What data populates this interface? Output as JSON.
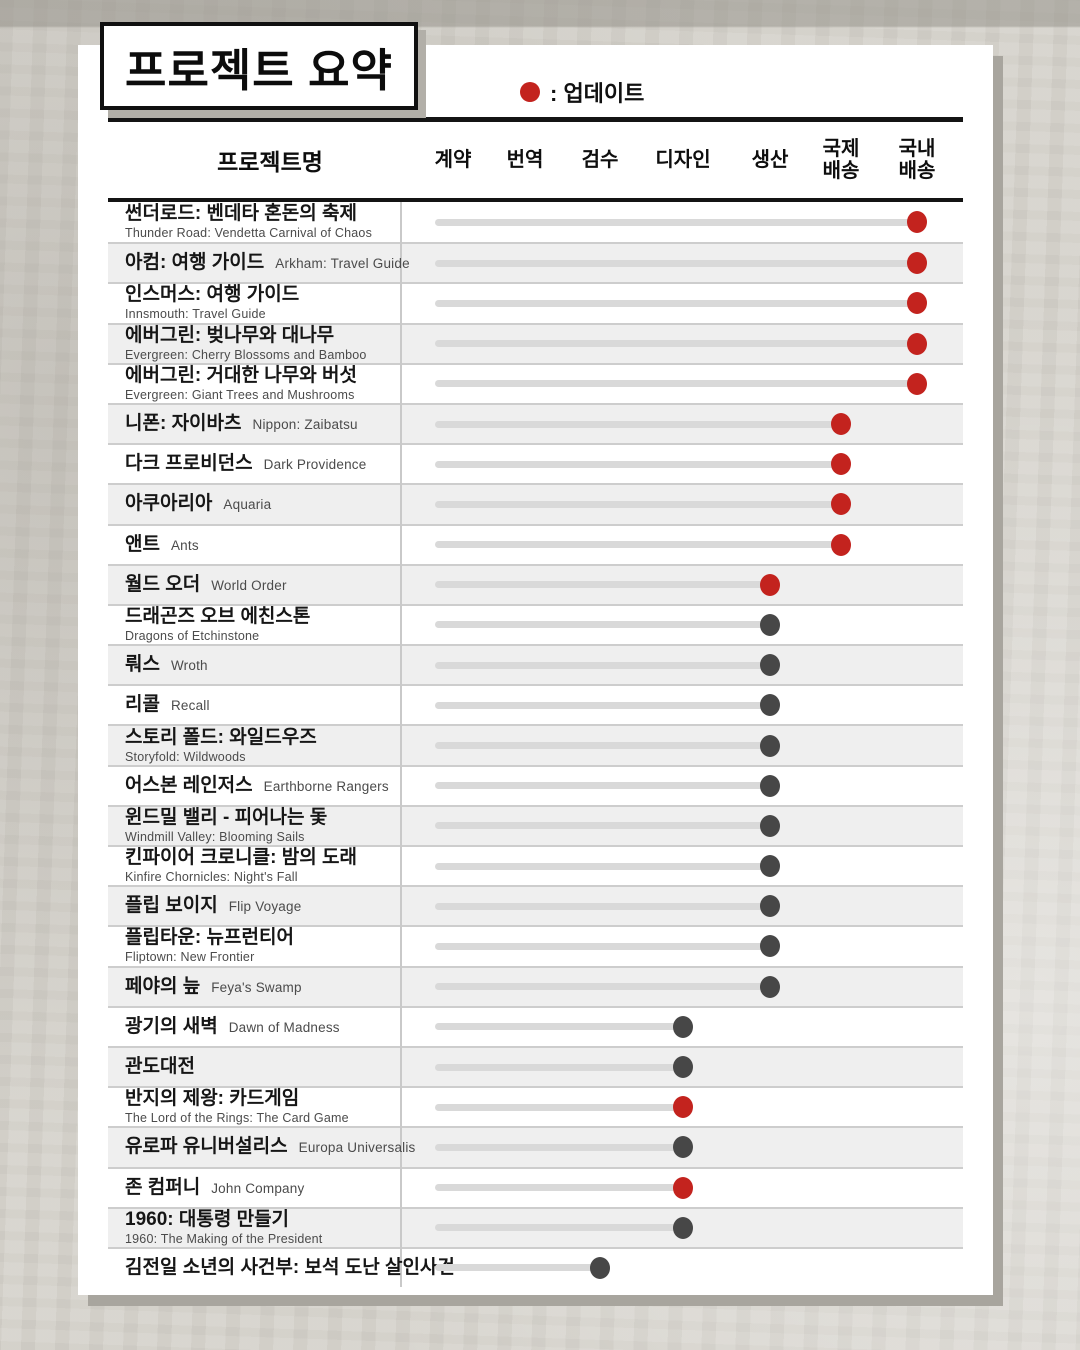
{
  "title": "프로젝트 요약",
  "legend": {
    "marker": "red-dot-icon",
    "label": ": 업데이트"
  },
  "colors": {
    "update_red": "#c3231e",
    "dot_gray": "#474747",
    "track_gray": "#d9d9d9",
    "row_alt_bg": "#efefef",
    "rule_black": "#141414"
  },
  "chart_data": {
    "type": "table",
    "title": "프로젝트 요약",
    "legend_label": ": 업데이트",
    "name_header": "프로젝트명",
    "columns": [
      "계약",
      "번역",
      "검수",
      "디자인",
      "생산",
      "국제 배송",
      "국내 배송"
    ],
    "rows": [
      {
        "name_kr": "썬더로드: 벤데타 혼돈의 축제",
        "name_en": "Thunder Road: Vendetta Carnival of Chaos",
        "layout": "stack",
        "stage_index": 7,
        "stage": "국내배송",
        "updated": true
      },
      {
        "name_kr": "아컴: 여행 가이드",
        "name_en": "Arkham: Travel Guide",
        "layout": "inline",
        "stage_index": 7,
        "stage": "국내배송",
        "updated": true
      },
      {
        "name_kr": "인스머스: 여행 가이드",
        "name_en": "Innsmouth: Travel Guide",
        "layout": "stack",
        "stage_index": 7,
        "stage": "국내배송",
        "updated": true
      },
      {
        "name_kr": "에버그린: 벚나무와 대나무",
        "name_en": "Evergreen: Cherry Blossoms and Bamboo",
        "layout": "stack",
        "stage_index": 7,
        "stage": "국내배송",
        "updated": true
      },
      {
        "name_kr": "에버그린: 거대한 나무와 버섯",
        "name_en": "Evergreen: Giant Trees and Mushrooms",
        "layout": "stack",
        "stage_index": 7,
        "stage": "국내배송",
        "updated": true
      },
      {
        "name_kr": "니폰: 자이바츠",
        "name_en": "Nippon: Zaibatsu",
        "layout": "inline",
        "stage_index": 6,
        "stage": "국제배송",
        "updated": true
      },
      {
        "name_kr": "다크 프로비던스",
        "name_en": "Dark Providence",
        "layout": "inline",
        "stage_index": 6,
        "stage": "국제배송",
        "updated": true
      },
      {
        "name_kr": "아쿠아리아",
        "name_en": "Aquaria",
        "layout": "inline",
        "stage_index": 6,
        "stage": "국제배송",
        "updated": true
      },
      {
        "name_kr": "앤트",
        "name_en": "Ants",
        "layout": "inline",
        "stage_index": 6,
        "stage": "국제배송",
        "updated": true
      },
      {
        "name_kr": "월드 오더",
        "name_en": "World Order",
        "layout": "inline",
        "stage_index": 5,
        "stage": "생산",
        "updated": true
      },
      {
        "name_kr": "드래곤즈 오브 에친스톤",
        "name_en": "Dragons of Etchinstone",
        "layout": "stack",
        "stage_index": 5,
        "stage": "생산",
        "updated": false
      },
      {
        "name_kr": "뤄스",
        "name_en": "Wroth",
        "layout": "inline",
        "stage_index": 5,
        "stage": "생산",
        "updated": false
      },
      {
        "name_kr": "리콜",
        "name_en": "Recall",
        "layout": "inline",
        "stage_index": 5,
        "stage": "생산",
        "updated": false
      },
      {
        "name_kr": "스토리 폴드: 와일드우즈",
        "name_en": "Storyfold: Wildwoods",
        "layout": "stack",
        "stage_index": 5,
        "stage": "생산",
        "updated": false
      },
      {
        "name_kr": "어스본 레인저스",
        "name_en": "Earthborne Rangers",
        "layout": "inline",
        "stage_index": 5,
        "stage": "생산",
        "updated": false
      },
      {
        "name_kr": "윈드밀 밸리 - 피어나는 돛",
        "name_en": "Windmill Valley: Blooming Sails",
        "layout": "stack",
        "stage_index": 5,
        "stage": "생산",
        "updated": false
      },
      {
        "name_kr": "킨파이어 크로니클: 밤의 도래",
        "name_en": "Kinfire Chornicles: Night's Fall",
        "layout": "stack",
        "stage_index": 5,
        "stage": "생산",
        "updated": false
      },
      {
        "name_kr": "플립 보이지",
        "name_en": "Flip Voyage",
        "layout": "inline",
        "stage_index": 5,
        "stage": "생산",
        "updated": false
      },
      {
        "name_kr": "플립타운: 뉴프런티어",
        "name_en": "Fliptown: New Frontier",
        "layout": "stack",
        "stage_index": 5,
        "stage": "생산",
        "updated": false
      },
      {
        "name_kr": "페야의 늪",
        "name_en": "Feya's Swamp",
        "layout": "inline",
        "stage_index": 5,
        "stage": "생산",
        "updated": false
      },
      {
        "name_kr": "광기의 새벽",
        "name_en": "Dawn of Madness",
        "layout": "inline",
        "stage_index": 4,
        "stage": "디자인",
        "updated": false
      },
      {
        "name_kr": "관도대전",
        "name_en": "",
        "layout": "inline",
        "stage_index": 4,
        "stage": "디자인",
        "updated": false
      },
      {
        "name_kr": "반지의 제왕: 카드게임",
        "name_en": "The Lord of the Rings: The Card Game",
        "layout": "stack",
        "stage_index": 4,
        "stage": "디자인",
        "updated": true
      },
      {
        "name_kr": "유로파 유니버설리스",
        "name_en": "Europa Universalis",
        "layout": "inline",
        "stage_index": 4,
        "stage": "디자인",
        "updated": false
      },
      {
        "name_kr": "존 컴퍼니",
        "name_en": "John Company",
        "layout": "inline",
        "stage_index": 4,
        "stage": "디자인",
        "updated": true
      },
      {
        "name_kr": "1960: 대통령 만들기",
        "name_en": "1960: The Making of the President",
        "layout": "stack",
        "stage_index": 4,
        "stage": "디자인",
        "updated": false
      },
      {
        "name_kr": "김전일 소년의 사건부: 보석 도난 살인사건",
        "name_en": "",
        "layout": "inline",
        "stage_index": 3,
        "stage": "검수",
        "updated": false
      }
    ]
  }
}
